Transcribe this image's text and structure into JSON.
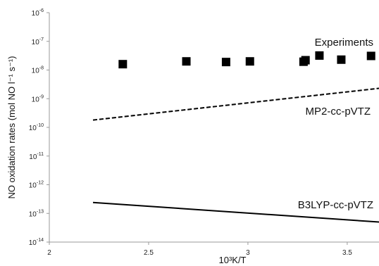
{
  "chart_data": {
    "type": "scatter",
    "xlabel": "10³K/T",
    "ylabel": "NO oxidation rates (mol NO l⁻¹ s⁻¹)",
    "xlim": [
      2,
      3.66
    ],
    "ylim_log10": [
      -14,
      -6
    ],
    "y_scale": "log",
    "grid": false,
    "x_ticks": [
      2,
      2.5,
      3,
      3.5
    ],
    "x_tick_labels": [
      "2",
      "2.5",
      "3",
      "3.5"
    ],
    "y_ticks_log10": [
      -14,
      -13,
      -12,
      -11,
      -10,
      -9,
      -8,
      -7,
      -6
    ],
    "y_tick_labels": [
      "10-14",
      "10-13",
      "10-12",
      "10-11",
      "10-10",
      "10-9",
      "10-8",
      "10-7",
      "10-6"
    ],
    "series": [
      {
        "name": "Experiments",
        "style": "markers",
        "marker": "square",
        "color": "#000000",
        "x": [
          2.37,
          2.69,
          2.89,
          3.01,
          3.28,
          3.29,
          3.36,
          3.47,
          3.62
        ],
        "y": [
          1.6e-08,
          2e-08,
          1.9e-08,
          2e-08,
          1.95e-08,
          2.2e-08,
          3.2e-08,
          2.3e-08,
          3.1e-08
        ]
      },
      {
        "name": "MP2-cc-pVTZ",
        "style": "dashed-line",
        "color": "#000000",
        "x": [
          2.22,
          3.66
        ],
        "y": [
          1.8e-10,
          2.3e-09
        ]
      },
      {
        "name": "B3LYP-cc-pVTZ",
        "style": "solid-line",
        "color": "#000000",
        "x": [
          2.22,
          3.66
        ],
        "y": [
          2.4e-13,
          5e-14
        ]
      }
    ]
  }
}
